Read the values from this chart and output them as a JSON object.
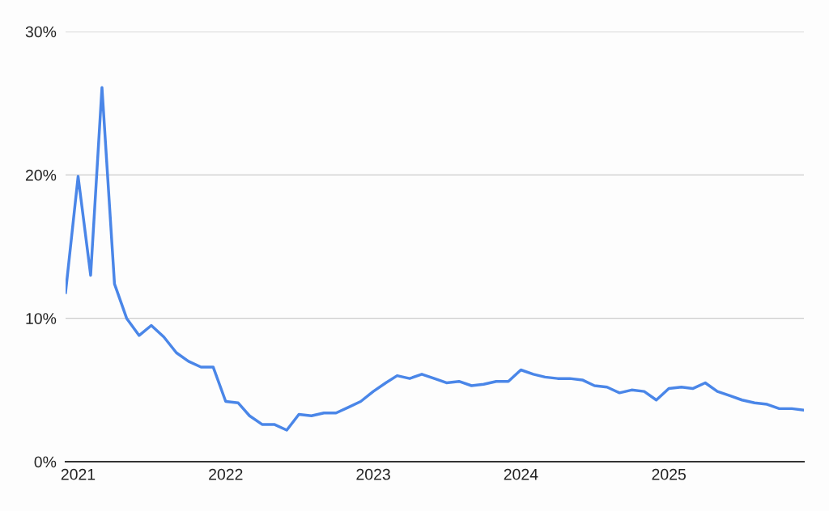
{
  "chart_data": {
    "type": "line",
    "x": [
      "2020-12",
      "2021-01",
      "2021-02",
      "2021-03",
      "2021-04",
      "2021-05",
      "2021-06",
      "2021-07",
      "2021-08",
      "2021-09",
      "2021-10",
      "2021-11",
      "2021-12",
      "2022-01",
      "2022-02",
      "2022-03",
      "2022-04",
      "2022-05",
      "2022-06",
      "2022-07",
      "2022-08",
      "2022-09",
      "2022-10",
      "2022-11",
      "2022-12",
      "2023-01",
      "2023-02",
      "2023-03",
      "2023-04",
      "2023-05",
      "2023-06",
      "2023-07",
      "2023-08",
      "2023-09",
      "2023-10",
      "2023-11",
      "2023-12",
      "2024-01",
      "2024-02",
      "2024-03",
      "2024-04",
      "2024-05",
      "2024-06",
      "2024-07",
      "2024-08",
      "2024-09",
      "2024-10",
      "2024-11",
      "2024-12",
      "2025-01",
      "2025-02",
      "2025-03",
      "2025-04",
      "2025-05",
      "2025-06",
      "2025-07",
      "2025-08",
      "2025-09",
      "2025-10",
      "2025-11",
      "2025-12"
    ],
    "series": [
      {
        "color": "#4a86e8",
        "values": [
          11.8,
          19.9,
          13.0,
          26.1,
          12.4,
          10.0,
          8.8,
          9.5,
          8.7,
          7.6,
          7.0,
          6.6,
          6.6,
          4.2,
          4.1,
          3.2,
          2.6,
          2.6,
          2.2,
          3.3,
          3.2,
          3.4,
          3.4,
          3.8,
          4.2,
          4.9,
          5.5,
          6.0,
          5.8,
          6.1,
          5.8,
          5.5,
          5.6,
          5.3,
          5.4,
          5.6,
          5.6,
          6.4,
          6.1,
          5.9,
          5.8,
          5.8,
          5.7,
          5.3,
          5.2,
          4.8,
          5.0,
          4.9,
          4.3,
          5.1,
          5.2,
          5.1,
          5.5,
          4.9,
          4.6,
          4.3,
          4.1,
          4.0,
          3.7,
          3.7,
          3.6
        ]
      }
    ],
    "xlim": [
      "2020-12",
      "2025-12"
    ],
    "xticks": [
      {
        "value": "2021-01",
        "label": "2021"
      },
      {
        "value": "2022-01",
        "label": "2022"
      },
      {
        "value": "2023-01",
        "label": "2023"
      },
      {
        "value": "2024-01",
        "label": "2024"
      },
      {
        "value": "2025-01",
        "label": "2025"
      }
    ],
    "ylim": [
      0,
      30
    ],
    "yticks": [
      {
        "value": 0,
        "label": "0%"
      },
      {
        "value": 10,
        "label": "10%"
      },
      {
        "value": 20,
        "label": "20%"
      },
      {
        "value": 30,
        "label": "30%"
      }
    ],
    "grid": "y",
    "marker": "none",
    "line_style": "solid"
  }
}
